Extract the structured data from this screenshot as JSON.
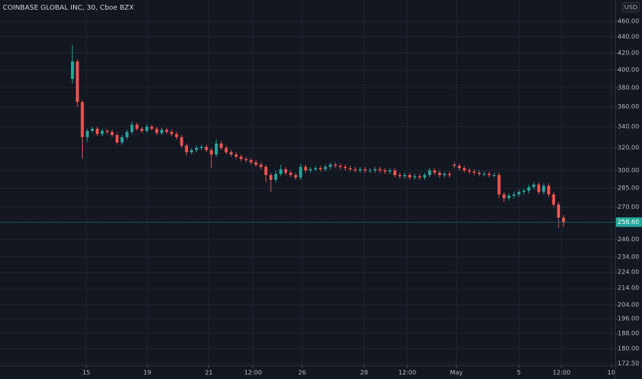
{
  "chart_data": {
    "type": "candlestick",
    "title": "COINBASE GLOBAL INC, 30, Cboe BZX",
    "currency": "USD",
    "up_color": "#26a69a",
    "down_color": "#ef5350",
    "log_scale": true,
    "grid": true,
    "open": [
      390,
      410,
      365,
      330,
      336,
      338,
      333,
      336,
      335,
      332,
      325,
      330,
      335,
      342,
      338,
      336,
      340,
      338,
      334,
      337,
      335,
      333,
      330,
      322,
      316,
      318,
      320,
      321,
      318,
      314,
      324,
      320,
      316,
      314,
      312,
      310,
      309,
      307,
      305,
      303,
      296,
      292,
      297,
      301,
      298,
      296,
      294,
      303,
      300,
      301,
      302,
      301,
      303,
      305,
      304,
      303,
      302,
      301,
      300,
      301,
      300,
      300,
      301,
      300,
      299,
      300,
      296,
      295,
      296,
      294,
      295,
      294,
      296,
      300,
      298,
      296,
      297,
      305,
      304,
      302,
      300,
      299,
      298,
      297,
      297,
      296,
      296,
      280,
      277,
      279,
      280,
      282,
      283,
      286,
      288,
      282,
      287,
      280,
      272,
      262
    ],
    "high": [
      430,
      412,
      367,
      338,
      340,
      340,
      338,
      338,
      337,
      334,
      332,
      337,
      345,
      344,
      340,
      343,
      342,
      340,
      339,
      339,
      337,
      335,
      332,
      324,
      320,
      322,
      323,
      323,
      320,
      328,
      326,
      322,
      318,
      316,
      314,
      312,
      311,
      309,
      307,
      305,
      298,
      300,
      305,
      303,
      300,
      298,
      306,
      305,
      303,
      304,
      304,
      305,
      307,
      307,
      306,
      305,
      304,
      303,
      303,
      303,
      302,
      303,
      303,
      302,
      302,
      302,
      298,
      298,
      298,
      297,
      297,
      298,
      302,
      302,
      300,
      299,
      299,
      307,
      306,
      304,
      302,
      301,
      300,
      299,
      299,
      298,
      298,
      282,
      281,
      282,
      284,
      285,
      288,
      290,
      290,
      289,
      289,
      282,
      274,
      264
    ],
    "low": [
      385,
      360,
      310,
      326,
      334,
      331,
      331,
      333,
      330,
      323,
      323,
      328,
      333,
      336,
      334,
      334,
      336,
      332,
      332,
      333,
      331,
      328,
      320,
      313,
      314,
      316,
      318,
      316,
      302,
      312,
      318,
      314,
      312,
      310,
      308,
      307,
      305,
      303,
      301,
      290,
      282,
      290,
      295,
      296,
      294,
      292,
      292,
      298,
      298,
      299,
      299,
      299,
      301,
      302,
      301,
      300,
      299,
      298,
      298,
      298,
      298,
      298,
      298,
      297,
      297,
      294,
      293,
      293,
      292,
      292,
      292,
      292,
      294,
      296,
      294,
      294,
      294,
      302,
      300,
      298,
      297,
      296,
      295,
      295,
      294,
      294,
      277,
      274,
      275,
      277,
      278,
      280,
      281,
      284,
      280,
      280,
      278,
      270,
      254,
      255
    ],
    "close": [
      410,
      365,
      330,
      336,
      338,
      333,
      336,
      335,
      332,
      325,
      330,
      335,
      342,
      338,
      336,
      340,
      338,
      334,
      337,
      335,
      333,
      330,
      322,
      316,
      318,
      320,
      321,
      318,
      314,
      324,
      320,
      316,
      314,
      312,
      310,
      309,
      307,
      305,
      303,
      296,
      292,
      297,
      301,
      298,
      296,
      294,
      303,
      300,
      301,
      302,
      301,
      303,
      305,
      304,
      303,
      302,
      301,
      300,
      301,
      300,
      300,
      301,
      300,
      299,
      300,
      296,
      295,
      296,
      294,
      295,
      294,
      296,
      300,
      298,
      296,
      297,
      296,
      304,
      302,
      300,
      299,
      298,
      297,
      297,
      296,
      296,
      280,
      277,
      279,
      280,
      282,
      283,
      286,
      288,
      282,
      287,
      280,
      272,
      262,
      258.6
    ],
    "last_price": {
      "value": 258.6,
      "label": "258.60"
    },
    "xlim": [
      -14.6,
      109.4
    ],
    "xticks": [
      {
        "value": 2.8,
        "label": "15"
      },
      {
        "value": 15.1,
        "label": "19"
      },
      {
        "value": 27.5,
        "label": "21"
      },
      {
        "value": 36.4,
        "label": "12:00"
      },
      {
        "value": 46.3,
        "label": "26"
      },
      {
        "value": 58.8,
        "label": "28"
      },
      {
        "value": 67.5,
        "label": "12:00"
      },
      {
        "value": 77.4,
        "label": "May"
      },
      {
        "value": 90,
        "label": "5"
      },
      {
        "value": 98.6,
        "label": "12:00"
      },
      {
        "value": 108.6,
        "label": "10"
      }
    ],
    "ylim": [
      171.6,
      489
    ],
    "yticks": [
      {
        "value": 460,
        "label": "460.00"
      },
      {
        "value": 440,
        "label": "440.00"
      },
      {
        "value": 420,
        "label": "420.00"
      },
      {
        "value": 400,
        "label": "400.00"
      },
      {
        "value": 380,
        "label": "380.00"
      },
      {
        "value": 360,
        "label": "360.00"
      },
      {
        "value": 340,
        "label": "340.00"
      },
      {
        "value": 320,
        "label": "320.00"
      },
      {
        "value": 300,
        "label": "300.00"
      },
      {
        "value": 285,
        "label": "285.00"
      },
      {
        "value": 270,
        "label": "270.00"
      },
      {
        "value": 246,
        "label": "246.00"
      },
      {
        "value": 234,
        "label": "234.00"
      },
      {
        "value": 224,
        "label": "224.00"
      },
      {
        "value": 214,
        "label": "214.00"
      },
      {
        "value": 204,
        "label": "204.00"
      },
      {
        "value": 196,
        "label": "196.00"
      },
      {
        "value": 188,
        "label": "188.00"
      },
      {
        "value": 180,
        "label": "180.00"
      },
      {
        "value": 172.5,
        "label": "172.50"
      }
    ]
  }
}
